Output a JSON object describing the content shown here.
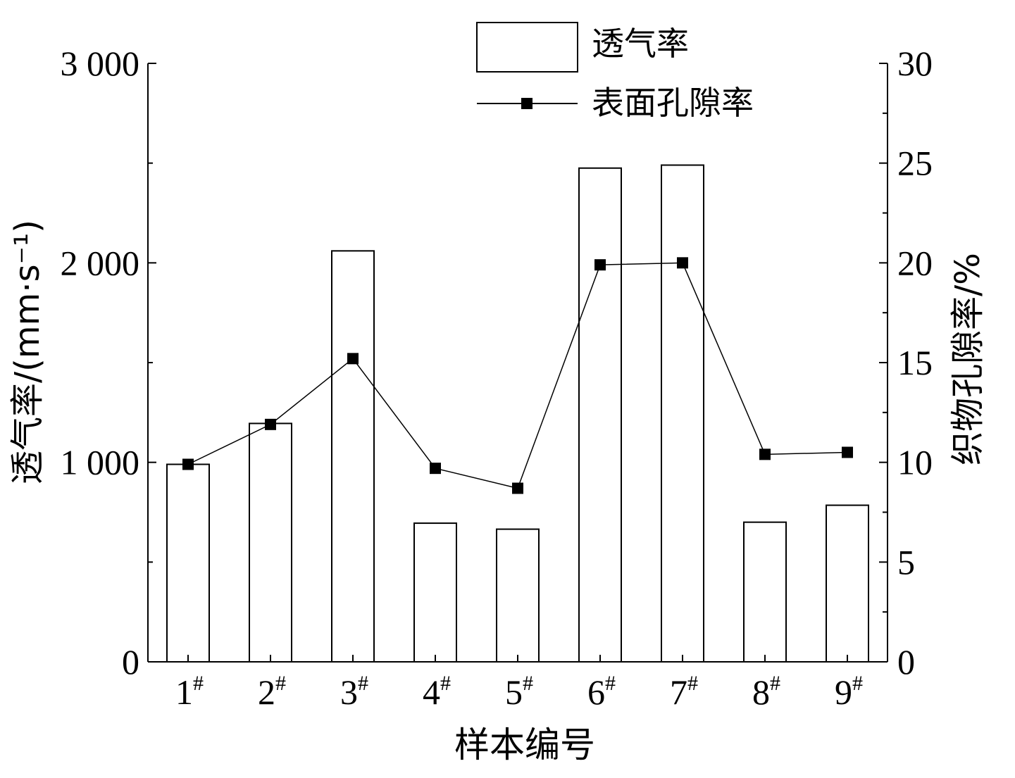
{
  "chart_data": {
    "type": "bar",
    "xlabel": "样本编号",
    "ylabel_left": "透气率/(mm·s⁻¹)",
    "ylabel_right": "织物孔隙率/%",
    "categories": [
      "1",
      "2",
      "3",
      "4",
      "5",
      "6",
      "7",
      "8",
      "9"
    ],
    "category_suffix": "#",
    "ylim_left": [
      0,
      3000
    ],
    "yticks_left": [
      "0",
      "1 000",
      "2 000",
      "3 000"
    ],
    "ylim_right": [
      0,
      30
    ],
    "yticks_right": [
      "0",
      "5",
      "10",
      "15",
      "20",
      "25",
      "30"
    ],
    "series": [
      {
        "name": "透气率",
        "type": "bar",
        "axis": "left",
        "values": [
          990,
          1195,
          2060,
          695,
          665,
          2475,
          2490,
          700,
          785
        ]
      },
      {
        "name": "表面孔隙率",
        "type": "line",
        "marker": "square",
        "axis": "right",
        "values": [
          9.9,
          11.9,
          15.2,
          9.7,
          8.7,
          19.9,
          20.0,
          10.4,
          10.5
        ]
      }
    ],
    "legend": [
      {
        "label": "透气率",
        "symbol": "bar"
      },
      {
        "label": "表面孔隙率",
        "symbol": "line-square"
      }
    ],
    "legend_position": "top",
    "grid": false,
    "colors": {
      "bar_fill": "#ffffff",
      "stroke": "#000000"
    }
  }
}
